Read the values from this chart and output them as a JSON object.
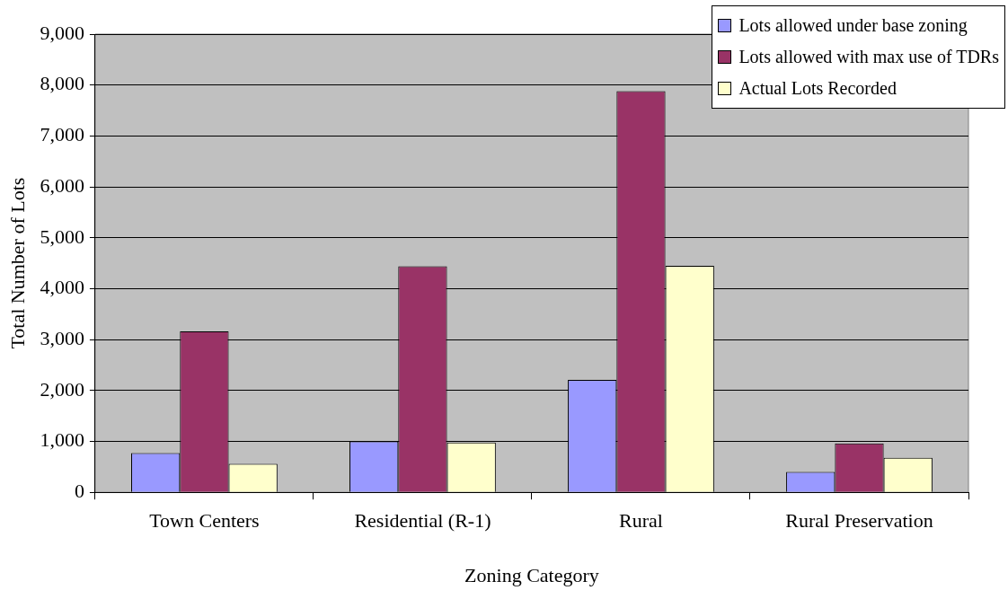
{
  "chart_data": {
    "type": "bar",
    "xlabel": "Zoning Category",
    "ylabel": "Total Number of Lots",
    "categories": [
      "Town Centers",
      "Residential (R-1)",
      "Rural",
      "Rural Preservation"
    ],
    "series": [
      {
        "name": "Lots allowed under base zoning",
        "color": "#9999ff",
        "values": [
          770,
          1000,
          2210,
          400
        ]
      },
      {
        "name": "Lots allowed with max use of TDRs",
        "color": "#993366",
        "values": [
          3160,
          4440,
          7880,
          960
        ]
      },
      {
        "name": "Actual Lots Recorded",
        "color": "#ffffcc",
        "values": [
          560,
          980,
          4450,
          680
        ]
      }
    ],
    "ylim": [
      0,
      9000
    ],
    "yticks": [
      {
        "value": 0,
        "label": "0"
      },
      {
        "value": 1000,
        "label": "1,000"
      },
      {
        "value": 2000,
        "label": "2,000"
      },
      {
        "value": 3000,
        "label": "3,000"
      },
      {
        "value": 4000,
        "label": "4,000"
      },
      {
        "value": 5000,
        "label": "5,000"
      },
      {
        "value": 6000,
        "label": "6,000"
      },
      {
        "value": 7000,
        "label": "7,000"
      },
      {
        "value": 8000,
        "label": "8,000"
      },
      {
        "value": 9000,
        "label": "9,000"
      }
    ],
    "grid": "y",
    "legend": "top right"
  }
}
